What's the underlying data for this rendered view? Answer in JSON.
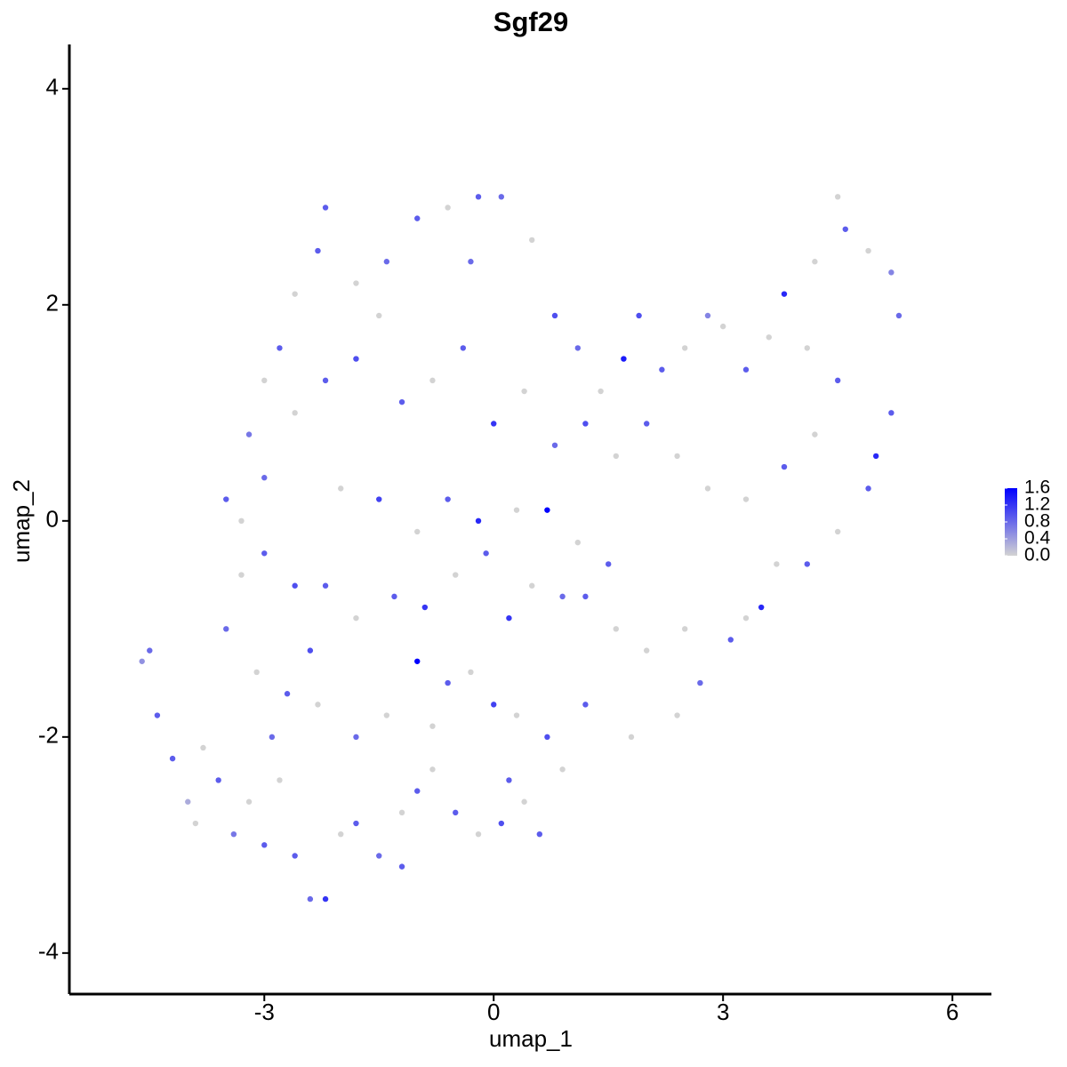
{
  "chart_data": {
    "type": "scatter",
    "title": "Sgf29",
    "x_label": "umap_1",
    "y_label": "umap_2",
    "x": [
      -4.6,
      -4.5,
      -4.4,
      -4.2,
      -4.0,
      -3.8,
      -3.6,
      -3.4,
      -3.2,
      -3.0,
      -2.8,
      -2.6,
      -2.4,
      -2.2,
      -2.0,
      -1.8,
      -1.5,
      -1.2,
      -1.0,
      -0.8,
      -0.5,
      -0.2,
      0.1,
      0.4,
      0.6,
      0.9,
      0.7,
      0.3,
      0,
      -0.3,
      -0.6,
      -1.0,
      -1.4,
      -1.8,
      -2.3,
      -2.7,
      -3.1,
      -3.5,
      -3.3,
      -3.0,
      -2.6,
      -2.2,
      -1.8,
      -1.3,
      -0.9,
      -0.5,
      -0.1,
      0.2,
      0.5,
      0.9,
      1.2,
      1.6,
      2.0,
      2.5,
      2.7,
      3.1,
      3.3,
      3.5,
      3.7,
      4.1,
      4.5,
      4.9,
      5.0,
      5.2,
      5.3,
      5.2,
      4.9,
      4.6,
      4.5,
      4.2,
      3.8,
      3.6,
      3.3,
      3.0,
      2.8,
      2.5,
      2.2,
      1.9,
      1.7,
      1.4,
      1.1,
      0.8,
      0.5,
      0.1,
      -0.2,
      -0.6,
      -1.0,
      -1.4,
      -1.8,
      -2.2,
      -2.3,
      -2.6,
      -2.8,
      -3.0,
      -3.2,
      -3.5,
      -3.3,
      -3.0,
      -2.6,
      -2.2,
      -1.8,
      -1.5,
      -1.2,
      -0.8,
      -0.4,
      0,
      0.4,
      0.8,
      1.2,
      1.6,
      2.0,
      2.4,
      2.8,
      3.3,
      3.8,
      4.2,
      4.5,
      4.1,
      -2.0,
      -1.5,
      -1.0,
      -0.6,
      -0.2,
      0.3,
      0.7,
      1.1,
      1.5,
      -2.4,
      -2.9,
      -3.9,
      0.2,
      -0.8,
      1.2,
      1.8,
      2.4,
      -0.3,
      -1.2
    ],
    "y": [
      -1.3,
      -1.2,
      -1.8,
      -2.2,
      -2.6,
      -2.1,
      -2.4,
      -2.9,
      -2.6,
      -3.0,
      -2.4,
      -3.1,
      -3.5,
      -3.5,
      -2.9,
      -2.8,
      -3.1,
      -2.7,
      -2.5,
      -2.3,
      -2.7,
      -2.9,
      -2.8,
      -2.6,
      -2.9,
      -2.3,
      -2.0,
      -1.8,
      -1.7,
      -1.4,
      -1.5,
      -1.3,
      -1.8,
      -2.0,
      -1.7,
      -1.6,
      -1.4,
      -1.0,
      -0.5,
      -0.3,
      -0.6,
      -0.6,
      -0.9,
      -0.7,
      -0.8,
      -0.5,
      -0.3,
      -0.9,
      -0.6,
      -0.7,
      -0.7,
      -1.0,
      -1.2,
      -1.0,
      -1.5,
      -1.1,
      -0.9,
      -0.8,
      -0.4,
      -0.4,
      -0.1,
      0.3,
      0.6,
      1.0,
      1.9,
      2.3,
      2.5,
      2.7,
      3.0,
      2.4,
      2.1,
      1.7,
      1.4,
      1.8,
      1.9,
      1.6,
      1.4,
      1.9,
      1.5,
      1.2,
      1.6,
      1.9,
      2.6,
      3.0,
      3.0,
      2.9,
      2.8,
      2.4,
      2.2,
      2.9,
      2.5,
      2.1,
      1.6,
      1.3,
      0.8,
      0.2,
      0,
      0.4,
      1.0,
      1.3,
      1.5,
      1.9,
      1.1,
      1.3,
      1.6,
      0.9,
      1.2,
      0.7,
      0.9,
      0.6,
      0.9,
      0.6,
      0.3,
      0.2,
      0.5,
      0.8,
      1.3,
      1.6,
      0.3,
      0.2,
      -0.1,
      0.2,
      0.0,
      0.1,
      0.1,
      -0.2,
      -0.4,
      -1.2,
      -2.0,
      -2.8,
      -2.4,
      -1.9,
      -1.7,
      -2.0,
      -1.8,
      2.4,
      -3.2
    ],
    "values": [
      0.5,
      0.8,
      0.9,
      0.9,
      0.3,
      0,
      0.9,
      0.7,
      0,
      0.9,
      0,
      0.9,
      0.8,
      1.2,
      0,
      0.9,
      0.8,
      0,
      0.9,
      0,
      0.9,
      0,
      1.0,
      0,
      0.9,
      0,
      1.0,
      0,
      1.1,
      0,
      0.9,
      1.6,
      0,
      0.8,
      0,
      0.9,
      0,
      0.8,
      0,
      0.9,
      1.0,
      0.9,
      0,
      0.9,
      1.2,
      0,
      0.9,
      1.2,
      0,
      0.8,
      0.9,
      0,
      0,
      0,
      0.8,
      0.9,
      0,
      1.3,
      0,
      0.9,
      0,
      0.9,
      1.3,
      0.9,
      0.8,
      0.6,
      0,
      0.9,
      0,
      0,
      1.3,
      0,
      0.9,
      0,
      0.6,
      0,
      0.9,
      1.0,
      1.4,
      0,
      0.8,
      1.0,
      0,
      0.8,
      0.9,
      0,
      0.9,
      0.8,
      0,
      0.9,
      0.9,
      0,
      0.9,
      0,
      0.7,
      0.9,
      0,
      0.8,
      0,
      0.9,
      1.0,
      0,
      0.9,
      0,
      0.9,
      1.2,
      0,
      0.8,
      1.0,
      0,
      0.9,
      0,
      0,
      0,
      0.9,
      0,
      0.9,
      0,
      0,
      1.1,
      0,
      0.9,
      1.3,
      0,
      1.6,
      0,
      0.9,
      1.0,
      0.8,
      0,
      0.9,
      0,
      0.9,
      0,
      0,
      0.8,
      0.9
    ],
    "xlim": [
      -5.55,
      6.51
    ],
    "ylim": [
      -4.38,
      4.41
    ],
    "xticks": [
      -3,
      0,
      3,
      6
    ],
    "yticks": [
      -4,
      -2,
      0,
      2,
      4
    ],
    "color_low": "#d3d3d3",
    "color_high": "#0000ff",
    "clim": [
      0,
      1.6
    ],
    "cticks": [
      {
        "value": 0,
        "label": "0.0"
      },
      {
        "value": 0.4,
        "label": "0.4"
      },
      {
        "value": 0.8,
        "label": "0.8"
      },
      {
        "value": 1.2,
        "label": "1.2"
      },
      {
        "value": 1.6,
        "label": "1.6"
      }
    ]
  }
}
